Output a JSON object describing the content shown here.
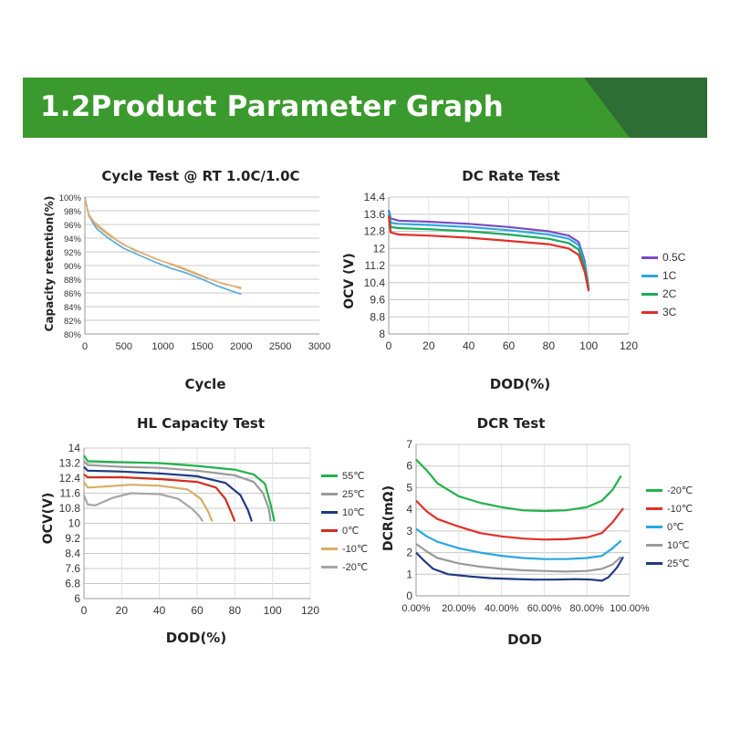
{
  "header": {
    "title": "1.2Product Parameter Graph"
  },
  "colors": {
    "banner": "#3b9a2d",
    "banner_dark": "#2e6d34",
    "grid": "#c8c8c8"
  },
  "chart_data": [
    {
      "id": "cycle",
      "type": "line",
      "title": "Cycle Test @ RT 1.0C/1.0C",
      "xlabel": "Cycle",
      "ylabel": "Capacity retention(%)",
      "xlim": [
        0,
        3000
      ],
      "ylim": [
        80,
        100
      ],
      "xticks": [
        0,
        500,
        1000,
        1500,
        2000,
        2500,
        3000
      ],
      "yticks": [
        80,
        82,
        84,
        86,
        88,
        90,
        92,
        94,
        96,
        98,
        100
      ],
      "ytick_labels": [
        "80%",
        "82%",
        "84%",
        "86%",
        "88%",
        "90%",
        "92%",
        "94%",
        "96%",
        "98%",
        "100%"
      ],
      "grid": true,
      "series": [
        {
          "color": "#d4a76a",
          "points": [
            [
              0,
              100
            ],
            [
              50,
              97.5
            ],
            [
              150,
              95.8
            ],
            [
              300,
              94.5
            ],
            [
              500,
              93
            ],
            [
              700,
              92
            ],
            [
              900,
              91
            ],
            [
              1100,
              90.2
            ],
            [
              1300,
              89.3
            ],
            [
              1500,
              88.4
            ],
            [
              1700,
              87.6
            ],
            [
              1900,
              87
            ],
            [
              2000,
              86.6
            ]
          ]
        },
        {
          "color": "#4da9d8",
          "points": [
            [
              0,
              100
            ],
            [
              50,
              97.2
            ],
            [
              150,
              95.4
            ],
            [
              300,
              94
            ],
            [
              500,
              92.5
            ],
            [
              700,
              91.5
            ],
            [
              900,
              90.5
            ],
            [
              1100,
              89.6
            ],
            [
              1300,
              88.9
            ],
            [
              1500,
              88
            ],
            [
              1700,
              87
            ],
            [
              1900,
              86.2
            ],
            [
              2000,
              85.8
            ]
          ]
        },
        {
          "color": "#e2b27a",
          "points": [
            [
              0,
              99.8
            ],
            [
              60,
              97
            ],
            [
              200,
              95.6
            ],
            [
              400,
              93.8
            ],
            [
              600,
              92.4
            ],
            [
              800,
              91.5
            ],
            [
              1000,
              90.6
            ],
            [
              1200,
              89.9
            ],
            [
              1400,
              89
            ],
            [
              1600,
              88
            ],
            [
              1800,
              87.2
            ],
            [
              2000,
              86.8
            ]
          ]
        }
      ]
    },
    {
      "id": "dcrate",
      "type": "line",
      "title": "DC Rate Test",
      "xlabel": "DOD(%)",
      "ylabel": "OCV (V)",
      "xlim": [
        0,
        120
      ],
      "ylim": [
        8,
        14.4
      ],
      "xticks": [
        0,
        20,
        40,
        60,
        80,
        100,
        120
      ],
      "yticks": [
        8,
        8.8,
        9.6,
        10.4,
        11.2,
        12,
        12.8,
        13.6,
        14.4
      ],
      "ytick_labels": [
        "8",
        "8.8",
        "9.6",
        "10.4",
        "11.2",
        "12",
        "12.8",
        "13.6",
        "14.4"
      ],
      "grid": true,
      "legend": "right",
      "series": [
        {
          "name": "0.5C",
          "color": "#7a4cc2",
          "points": [
            [
              0,
              13.8
            ],
            [
              1,
              13.4
            ],
            [
              5,
              13.3
            ],
            [
              20,
              13.25
            ],
            [
              40,
              13.15
            ],
            [
              60,
              13
            ],
            [
              80,
              12.8
            ],
            [
              90,
              12.6
            ],
            [
              95,
              12.3
            ],
            [
              98,
              11.4
            ],
            [
              100,
              10.1
            ]
          ]
        },
        {
          "name": "1C",
          "color": "#2ba8df",
          "points": [
            [
              0,
              13.7
            ],
            [
              1,
              13.2
            ],
            [
              5,
              13.15
            ],
            [
              20,
              13.1
            ],
            [
              40,
              13
            ],
            [
              60,
              12.85
            ],
            [
              80,
              12.65
            ],
            [
              90,
              12.45
            ],
            [
              95,
              12.15
            ],
            [
              98,
              11.3
            ],
            [
              100,
              10.1
            ]
          ]
        },
        {
          "name": "2C",
          "color": "#1aab5d",
          "points": [
            [
              0,
              13.6
            ],
            [
              1,
              13.0
            ],
            [
              5,
              12.95
            ],
            [
              20,
              12.9
            ],
            [
              40,
              12.8
            ],
            [
              60,
              12.65
            ],
            [
              80,
              12.45
            ],
            [
              90,
              12.25
            ],
            [
              95,
              11.95
            ],
            [
              98,
              11.1
            ],
            [
              100,
              10.1
            ]
          ]
        },
        {
          "name": "3C",
          "color": "#e0302a",
          "points": [
            [
              0,
              13.5
            ],
            [
              1,
              12.75
            ],
            [
              5,
              12.65
            ],
            [
              20,
              12.6
            ],
            [
              40,
              12.5
            ],
            [
              60,
              12.35
            ],
            [
              80,
              12.2
            ],
            [
              90,
              12.0
            ],
            [
              95,
              11.7
            ],
            [
              98,
              10.9
            ],
            [
              100,
              10.0
            ]
          ]
        }
      ]
    },
    {
      "id": "hl",
      "type": "line",
      "title": "HL Capacity Test",
      "xlabel": "DOD(%)",
      "ylabel": "OCV(V)",
      "xlim": [
        0,
        120
      ],
      "ylim": [
        6,
        14
      ],
      "xticks": [
        0,
        20,
        40,
        60,
        80,
        100,
        120
      ],
      "yticks": [
        6,
        6.8,
        7.6,
        8.4,
        9.2,
        10,
        10.8,
        11.6,
        12.4,
        13.2,
        14
      ],
      "ytick_labels": [
        "6",
        "6.8",
        "7.6",
        "8.4",
        "9.2",
        "10",
        "10.8",
        "11.6",
        "12.4",
        "13.2",
        "14"
      ],
      "grid": true,
      "legend": "right",
      "series": [
        {
          "name": "55℃",
          "color": "#21b24a",
          "points": [
            [
              0,
              13.6
            ],
            [
              2,
              13.3
            ],
            [
              20,
              13.25
            ],
            [
              40,
              13.2
            ],
            [
              60,
              13.05
            ],
            [
              80,
              12.85
            ],
            [
              90,
              12.6
            ],
            [
              96,
              12.1
            ],
            [
              99,
              11.0
            ],
            [
              101,
              10.1
            ]
          ]
        },
        {
          "name": "25℃",
          "color": "#9a9a9a",
          "points": [
            [
              0,
              13.3
            ],
            [
              2,
              13.1
            ],
            [
              20,
              13.0
            ],
            [
              40,
              12.95
            ],
            [
              60,
              12.8
            ],
            [
              80,
              12.55
            ],
            [
              90,
              12.2
            ],
            [
              95,
              11.6
            ],
            [
              98,
              10.8
            ],
            [
              99,
              10.1
            ]
          ]
        },
        {
          "name": "10℃",
          "color": "#1d3a83",
          "points": [
            [
              0,
              13.0
            ],
            [
              2,
              12.8
            ],
            [
              20,
              12.75
            ],
            [
              40,
              12.65
            ],
            [
              60,
              12.5
            ],
            [
              75,
              12.15
            ],
            [
              83,
              11.5
            ],
            [
              87,
              10.7
            ],
            [
              89,
              10.1
            ]
          ]
        },
        {
          "name": "0℃",
          "color": "#d42d1e",
          "points": [
            [
              0,
              12.6
            ],
            [
              2,
              12.45
            ],
            [
              20,
              12.45
            ],
            [
              40,
              12.35
            ],
            [
              60,
              12.2
            ],
            [
              70,
              11.9
            ],
            [
              75,
              11.3
            ],
            [
              78,
              10.6
            ],
            [
              80,
              10.1
            ]
          ]
        },
        {
          "name": "-10℃",
          "color": "#d8ad67",
          "points": [
            [
              0,
              12.2
            ],
            [
              2,
              11.9
            ],
            [
              10,
              11.95
            ],
            [
              25,
              12.05
            ],
            [
              40,
              12.0
            ],
            [
              55,
              11.8
            ],
            [
              62,
              11.3
            ],
            [
              66,
              10.6
            ],
            [
              68,
              10.1
            ]
          ]
        },
        {
          "name": "-20℃",
          "color": "#a7a7a7",
          "points": [
            [
              0,
              11.5
            ],
            [
              2,
              11.0
            ],
            [
              6,
              10.95
            ],
            [
              15,
              11.35
            ],
            [
              25,
              11.6
            ],
            [
              40,
              11.55
            ],
            [
              50,
              11.3
            ],
            [
              57,
              10.8
            ],
            [
              61,
              10.4
            ],
            [
              63,
              10.1
            ]
          ]
        }
      ]
    },
    {
      "id": "dcr",
      "type": "line",
      "title": "DCR Test",
      "xlabel": "DOD",
      "ylabel": "DCR(mΩ)",
      "xlim": [
        0,
        100
      ],
      "ylim": [
        0,
        7
      ],
      "xticks": [
        0,
        20,
        40,
        60,
        80,
        100
      ],
      "xtick_labels": [
        "0.00%",
        "20.00%",
        "40.00%",
        "60.00%",
        "80.00%",
        "100.00%"
      ],
      "yticks": [
        0,
        1,
        2,
        3,
        4,
        5,
        6,
        7
      ],
      "ytick_labels": [
        "0",
        "1",
        "2",
        "3",
        "4",
        "5",
        "6",
        "7"
      ],
      "grid": true,
      "legend": "right",
      "series": [
        {
          "name": "-20℃",
          "color": "#21b24a",
          "points": [
            [
              0,
              6.3
            ],
            [
              5,
              5.8
            ],
            [
              10,
              5.2
            ],
            [
              20,
              4.6
            ],
            [
              30,
              4.3
            ],
            [
              40,
              4.1
            ],
            [
              50,
              3.95
            ],
            [
              60,
              3.92
            ],
            [
              70,
              3.95
            ],
            [
              80,
              4.1
            ],
            [
              87,
              4.4
            ],
            [
              92,
              4.9
            ],
            [
              96,
              5.55
            ]
          ]
        },
        {
          "name": "-10℃",
          "color": "#e0302a",
          "points": [
            [
              0,
              4.4
            ],
            [
              5,
              3.9
            ],
            [
              10,
              3.55
            ],
            [
              20,
              3.2
            ],
            [
              30,
              2.9
            ],
            [
              40,
              2.75
            ],
            [
              50,
              2.65
            ],
            [
              60,
              2.6
            ],
            [
              70,
              2.62
            ],
            [
              80,
              2.7
            ],
            [
              87,
              2.9
            ],
            [
              92,
              3.4
            ],
            [
              97,
              4.05
            ]
          ]
        },
        {
          "name": "0℃",
          "color": "#2ba8df",
          "points": [
            [
              0,
              3.1
            ],
            [
              5,
              2.75
            ],
            [
              10,
              2.5
            ],
            [
              20,
              2.2
            ],
            [
              30,
              2.0
            ],
            [
              40,
              1.85
            ],
            [
              50,
              1.75
            ],
            [
              60,
              1.7
            ],
            [
              70,
              1.7
            ],
            [
              80,
              1.75
            ],
            [
              87,
              1.85
            ],
            [
              92,
              2.2
            ],
            [
              96,
              2.55
            ]
          ]
        },
        {
          "name": "10℃",
          "color": "#9a9a9a",
          "points": [
            [
              0,
              2.4
            ],
            [
              5,
              2.05
            ],
            [
              10,
              1.75
            ],
            [
              20,
              1.5
            ],
            [
              30,
              1.35
            ],
            [
              40,
              1.25
            ],
            [
              50,
              1.18
            ],
            [
              60,
              1.15
            ],
            [
              70,
              1.12
            ],
            [
              80,
              1.15
            ],
            [
              87,
              1.25
            ],
            [
              92,
              1.45
            ],
            [
              96,
              1.8
            ]
          ]
        },
        {
          "name": "25℃",
          "color": "#1d3a83",
          "points": [
            [
              0,
              2.0
            ],
            [
              4,
              1.6
            ],
            [
              8,
              1.25
            ],
            [
              15,
              1.0
            ],
            [
              25,
              0.9
            ],
            [
              35,
              0.82
            ],
            [
              45,
              0.78
            ],
            [
              55,
              0.75
            ],
            [
              65,
              0.75
            ],
            [
              75,
              0.77
            ],
            [
              82,
              0.75
            ],
            [
              87,
              0.7
            ],
            [
              90,
              0.85
            ],
            [
              94,
              1.3
            ],
            [
              97,
              1.8
            ]
          ]
        }
      ]
    }
  ]
}
